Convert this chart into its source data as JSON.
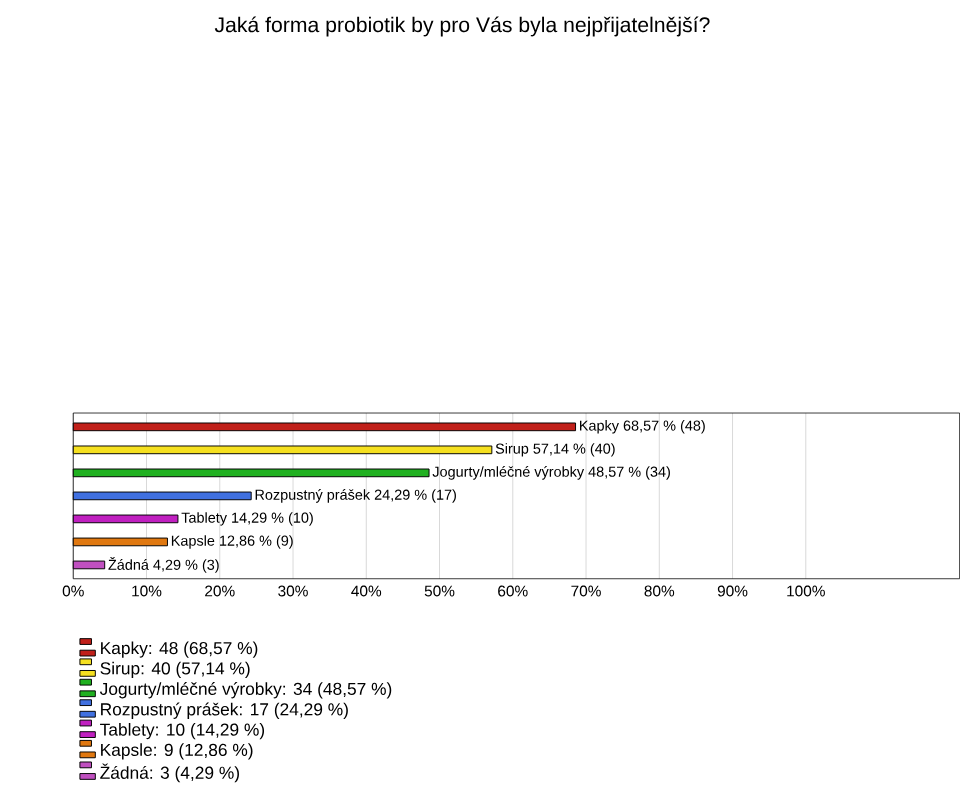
{
  "chart_data": {
    "type": "bar",
    "orientation": "horizontal",
    "title": "Jaká forma probiotik by pro Vás byla nejpřijatelnější?",
    "categories": [
      null,
      null,
      null,
      null,
      null,
      null,
      null
    ],
    "series": [
      {
        "name": "Kapky: 48 (68,57 %)",
        "color": "#c0201a",
        "values": [
          68.57,
          null,
          null,
          null,
          null,
          null,
          null
        ],
        "value_labels": [
          "Kapky 68,57 % (48)",
          null,
          null,
          null,
          null,
          null,
          null
        ]
      },
      {
        "name": "Sirup: 40 (57,14 %)",
        "color": "#f5e020",
        "values": [
          null,
          57.14,
          null,
          null,
          null,
          null,
          null
        ],
        "value_labels": [
          null,
          "Sirup 57,14 % (40)",
          null,
          null,
          null,
          null,
          null
        ]
      },
      {
        "name": "Jogurty/mléčné výrobky: 34 (48,57 %)",
        "color": "#20b020",
        "values": [
          null,
          null,
          48.57,
          null,
          null,
          null,
          null
        ],
        "value_labels": [
          null,
          null,
          "Jogurty/mléčné výrobky 48,57 % (34)",
          null,
          null,
          null,
          null
        ]
      },
      {
        "name": "Rozpustný prášek: 17 (24,29 %)",
        "color": "#4070e0",
        "values": [
          null,
          null,
          null,
          24.29,
          null,
          null,
          null
        ],
        "value_labels": [
          null,
          null,
          null,
          "Rozpustný prášek 24,29 % (17)",
          null,
          null,
          null
        ]
      },
      {
        "name": "Tablety: 10 (14,29 %)",
        "color": "#c020c0",
        "values": [
          null,
          null,
          null,
          null,
          14.29,
          null,
          null
        ],
        "value_labels": [
          null,
          null,
          null,
          null,
          "Tablety 14,29 % (10)",
          null,
          null
        ]
      },
      {
        "name": "Kapsle: 9 (12,86 %)",
        "color": "#e07810",
        "values": [
          null,
          null,
          null,
          null,
          null,
          12.86,
          null
        ],
        "value_labels": [
          null,
          null,
          null,
          null,
          null,
          "Kapsle 12,86 % (9)",
          null
        ]
      },
      {
        "name": "Žádná: 3 (4,29 %)",
        "color": "#c050c0",
        "values": [
          null,
          null,
          null,
          null,
          null,
          null,
          4.29
        ],
        "value_labels": [
          null,
          null,
          null,
          null,
          null,
          null,
          "Žádná 4,29 % (3)"
        ]
      }
    ],
    "xlim": [
      0,
      121
    ],
    "xticks": [
      {
        "value": 0,
        "label": "0%"
      },
      {
        "value": 10,
        "label": "10%"
      },
      {
        "value": 20,
        "label": "20%"
      },
      {
        "value": 30,
        "label": "30%"
      },
      {
        "value": 40,
        "label": "40%"
      },
      {
        "value": 50,
        "label": "50%"
      },
      {
        "value": 60,
        "label": "60%"
      },
      {
        "value": 70,
        "label": "70%"
      },
      {
        "value": 80,
        "label": "80%"
      },
      {
        "value": 90,
        "label": "90%"
      },
      {
        "value": 100,
        "label": "100%"
      }
    ],
    "grid": "x",
    "legend": "bottom left"
  }
}
